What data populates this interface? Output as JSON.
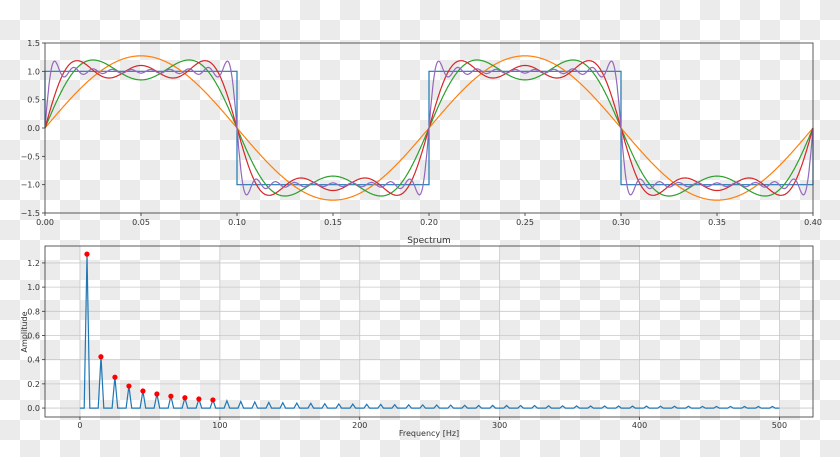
{
  "chart_data": [
    {
      "type": "line",
      "xlim": [
        0.0,
        0.4
      ],
      "ylim": [
        -1.5,
        1.5
      ],
      "xticks": [
        "0.00",
        "0.05",
        "0.10",
        "0.15",
        "0.20",
        "0.25",
        "0.30",
        "0.35",
        "0.40"
      ],
      "yticks": [
        "−1.5",
        "−1.0",
        "−0.5",
        "0.0",
        "0.5",
        "1.0",
        "1.5"
      ],
      "grid": false,
      "signal_frequency_hz": 5,
      "series": [
        {
          "kind": "square",
          "color": "#1f77b4"
        },
        {
          "kind": "fourier_partial_sum",
          "terms": 1,
          "color": "#ff7f0e"
        },
        {
          "kind": "fourier_partial_sum",
          "terms": 2,
          "color": "#2ca02c"
        },
        {
          "kind": "fourier_partial_sum",
          "terms": 3,
          "color": "#d62728"
        },
        {
          "kind": "fourier_partial_sum",
          "terms": 10,
          "color": "#9467bd"
        }
      ]
    },
    {
      "type": "line",
      "title": "Spectrum",
      "xlabel": "Frequency [Hz]",
      "ylabel": "Amplitude",
      "xlim": [
        -25,
        524
      ],
      "ylim": [
        -0.074,
        1.34
      ],
      "xticks": [
        0,
        100,
        200,
        300,
        400,
        500
      ],
      "yticks": [
        "0.0",
        "0.2",
        "0.4",
        "0.6",
        "0.8",
        "1.0",
        "1.2"
      ],
      "ytick_values": [
        0,
        0.2,
        0.4,
        0.6,
        0.8,
        1.0,
        1.2
      ],
      "grid": true,
      "line_color": "#1f77b4",
      "marker_color": "#ff0000",
      "peak_frequencies": [
        5,
        15,
        25,
        35,
        45,
        55,
        65,
        75,
        85,
        95,
        105,
        115,
        125,
        135,
        145,
        155,
        165,
        175,
        185,
        195,
        205,
        215,
        225,
        235,
        245,
        255,
        265,
        275,
        285,
        295,
        305,
        315,
        325,
        335,
        345,
        355,
        365,
        375,
        385,
        395,
        405,
        415,
        425,
        435,
        445,
        455,
        465,
        475,
        485,
        495
      ],
      "peak_amplitudes": [
        1.273,
        0.424,
        0.255,
        0.182,
        0.141,
        0.116,
        0.098,
        0.085,
        0.075,
        0.067,
        0.061,
        0.055,
        0.051,
        0.047,
        0.044,
        0.041,
        0.039,
        0.036,
        0.034,
        0.033,
        0.031,
        0.03,
        0.028,
        0.027,
        0.026,
        0.025,
        0.024,
        0.023,
        0.022,
        0.022,
        0.021,
        0.02,
        0.02,
        0.019,
        0.018,
        0.018,
        0.017,
        0.017,
        0.017,
        0.016,
        0.016,
        0.015,
        0.015,
        0.015,
        0.014,
        0.014,
        0.014,
        0.013,
        0.013,
        0.013
      ],
      "marked_peaks": 10
    }
  ]
}
